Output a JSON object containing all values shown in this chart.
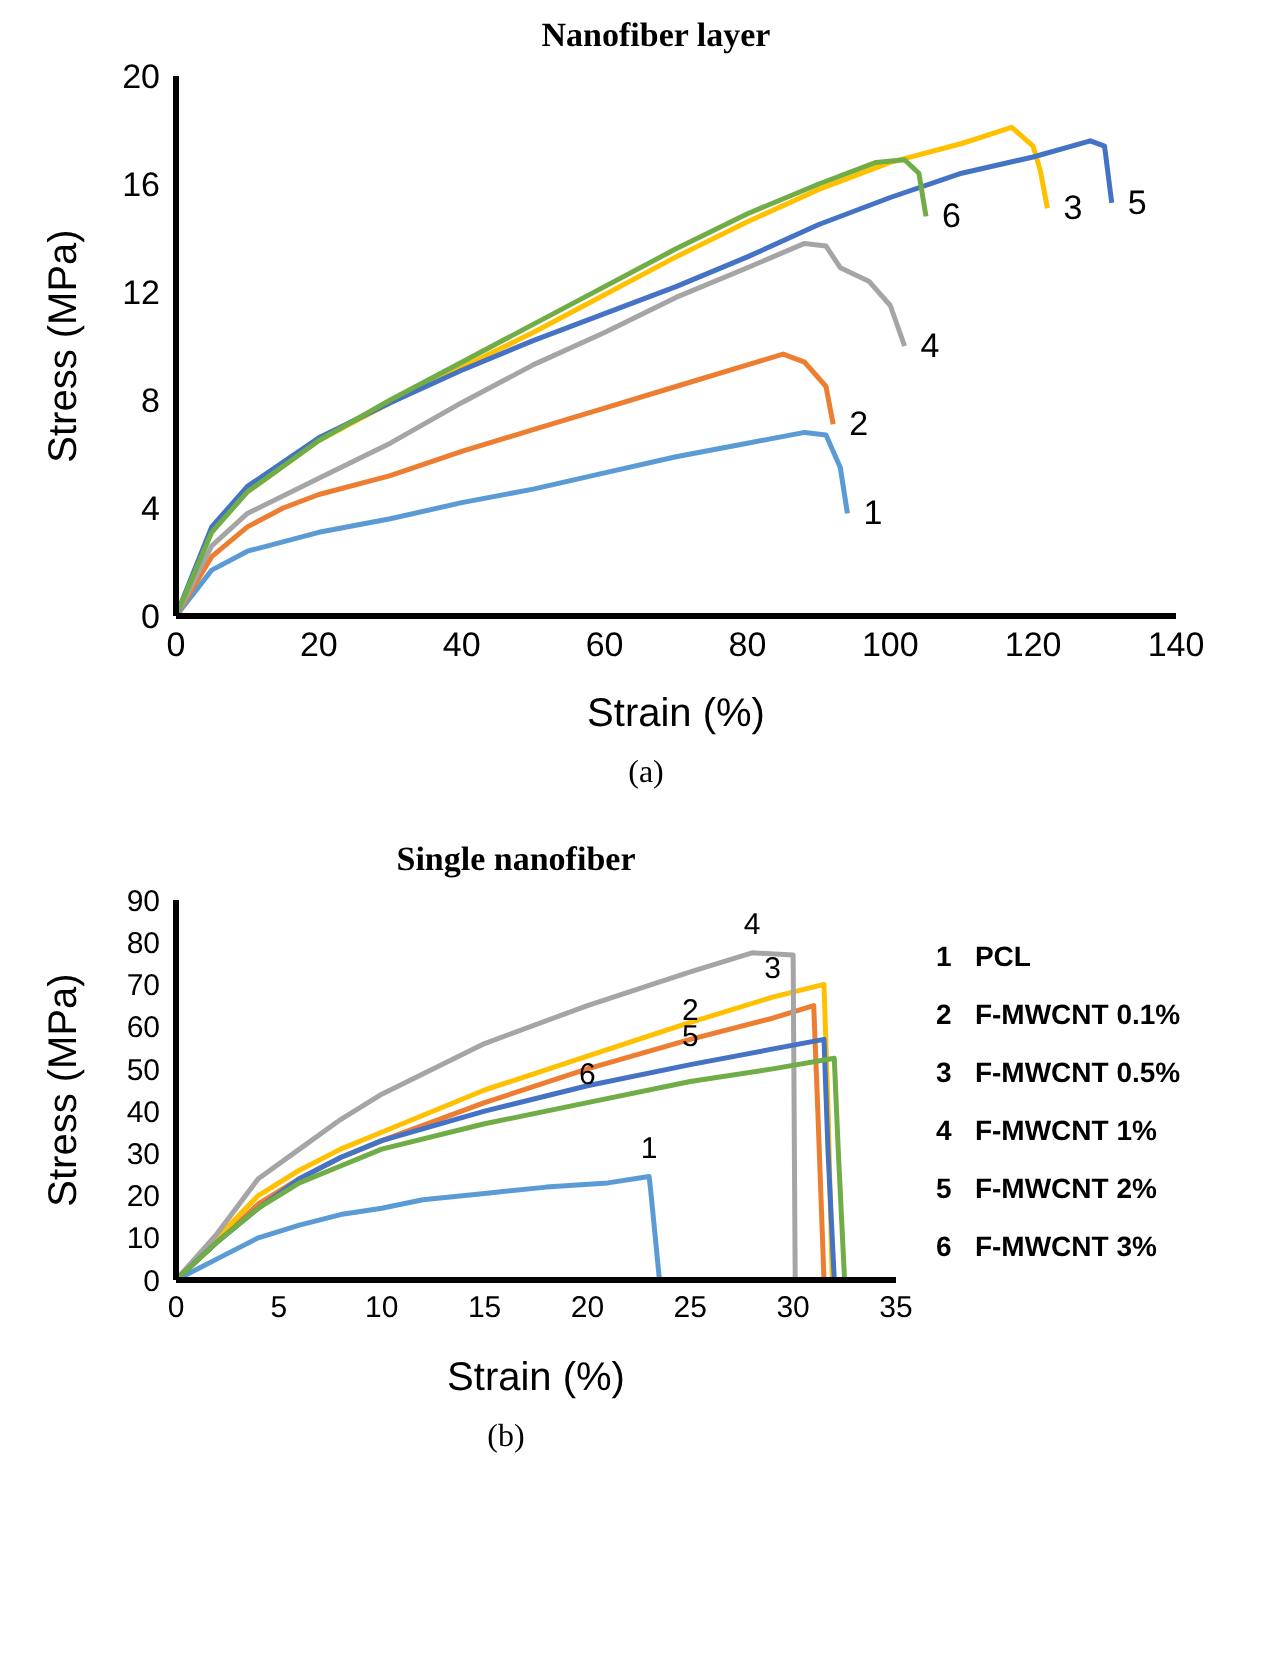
{
  "chart_data": [
    {
      "type": "line",
      "title": "Nanofiber layer",
      "xlabel": "Strain (%)",
      "ylabel": "Stress (MPa)",
      "xlim": [
        0,
        140
      ],
      "xticks": [
        0,
        20,
        40,
        60,
        80,
        100,
        120,
        140
      ],
      "ylim": [
        0,
        20
      ],
      "yticks": [
        0,
        4,
        8,
        12,
        16,
        20
      ],
      "grid": false,
      "legend": false,
      "marker": "none",
      "line_style": "solid",
      "series": [
        {
          "color": "#5b9bd5",
          "x": [
            0,
            5,
            10,
            20,
            30,
            40,
            50,
            60,
            70,
            80,
            88,
            91,
            93,
            94
          ],
          "values": [
            0,
            1.7,
            2.4,
            3.1,
            3.6,
            4.2,
            4.7,
            5.3,
            5.9,
            6.4,
            6.8,
            6.7,
            5.5,
            3.8
          ]
        },
        {
          "color": "#ed7d31",
          "x": [
            0,
            5,
            10,
            15,
            20,
            30,
            40,
            50,
            60,
            70,
            80,
            85,
            88,
            91,
            92
          ],
          "values": [
            0,
            2.2,
            3.3,
            4,
            4.5,
            5.2,
            6.1,
            6.9,
            7.7,
            8.5,
            9.3,
            9.7,
            9.4,
            8.5,
            7.1
          ]
        },
        {
          "color": "#ffc000",
          "x": [
            10,
            20,
            30,
            40,
            50,
            60,
            70,
            80,
            90,
            100,
            110,
            117,
            120,
            121,
            122
          ],
          "values": [
            4.6,
            6.5,
            7.9,
            9.2,
            10.5,
            11.9,
            13.3,
            14.6,
            15.8,
            16.8,
            17.5,
            18.1,
            17.4,
            16.5,
            15.1
          ]
        },
        {
          "color": "#a5a5a5",
          "x": [
            0,
            5,
            10,
            20,
            30,
            40,
            50,
            60,
            70,
            80,
            88,
            91,
            93,
            97,
            100,
            102
          ],
          "values": [
            0,
            2.6,
            3.8,
            5.1,
            6.4,
            7.9,
            9.3,
            10.5,
            11.8,
            12.9,
            13.8,
            13.7,
            12.9,
            12.4,
            11.5,
            10
          ]
        },
        {
          "color": "#4472c4",
          "x": [
            0,
            5,
            10,
            20,
            30,
            40,
            50,
            60,
            70,
            80,
            90,
            100,
            110,
            120,
            128,
            130,
            131
          ],
          "values": [
            0,
            3.3,
            4.8,
            6.6,
            7.9,
            9.1,
            10.2,
            11.2,
            12.2,
            13.3,
            14.5,
            15.5,
            16.4,
            17,
            17.6,
            17.4,
            15.3
          ]
        },
        {
          "color": "#70ad47",
          "x": [
            0,
            5,
            10,
            20,
            30,
            40,
            50,
            60,
            70,
            80,
            90,
            98,
            102,
            104,
            105
          ],
          "values": [
            0,
            3.1,
            4.6,
            6.5,
            8,
            9.4,
            10.8,
            12.2,
            13.6,
            14.9,
            16,
            16.8,
            16.9,
            16.4,
            14.8
          ]
        }
      ],
      "annotations": [
        {
          "text": "1",
          "x": 94,
          "y": 3.8
        },
        {
          "text": "2",
          "x": 92,
          "y": 7.1
        },
        {
          "text": "3",
          "x": 122,
          "y": 15.1
        },
        {
          "text": "4",
          "x": 102,
          "y": 10
        },
        {
          "text": "5",
          "x": 131,
          "y": 15.3
        },
        {
          "text": "6",
          "x": 105,
          "y": 14.8
        },
        "(a)"
      ]
    },
    {
      "type": "line",
      "title": "Single nanofiber",
      "xlabel": "Strain (%)",
      "ylabel": "Stress (MPa)",
      "xlim": [
        0,
        35
      ],
      "xticks": [
        0,
        5,
        10,
        15,
        20,
        25,
        30,
        35
      ],
      "ylim": [
        0,
        90
      ],
      "yticks": [
        0,
        10,
        20,
        30,
        40,
        50,
        60,
        70,
        80,
        90
      ],
      "grid": false,
      "legend": false,
      "marker": "none",
      "line_style": "solid",
      "series": [
        {
          "color": "#5b9bd5",
          "x": [
            0,
            2,
            4,
            6,
            8,
            10,
            12,
            15,
            18,
            21,
            23,
            23.1,
            23.5
          ],
          "values": [
            0,
            5,
            10,
            13,
            15.5,
            17,
            19,
            20.5,
            22,
            23,
            24.5,
            20,
            0
          ]
        },
        {
          "color": "#ed7d31",
          "x": [
            0,
            2,
            4,
            6,
            8,
            10,
            15,
            20,
            25,
            29,
            31,
            31.2,
            31.5
          ],
          "values": [
            0,
            9,
            18,
            24,
            29,
            33,
            42,
            50,
            57,
            62,
            65,
            40,
            0
          ]
        },
        {
          "color": "#ffc000",
          "x": [
            0,
            2,
            4,
            6,
            8,
            10,
            15,
            20,
            25,
            29,
            31.5,
            31.7,
            31.9
          ],
          "values": [
            0,
            10,
            20,
            26,
            31,
            35,
            45,
            53,
            61,
            67,
            70,
            40,
            0
          ]
        },
        {
          "color": "#a5a5a5",
          "x": [
            0,
            2,
            4,
            6,
            8,
            10,
            15,
            20,
            25,
            28,
            30,
            30.1
          ],
          "values": [
            0,
            11,
            24,
            31,
            38,
            44,
            56,
            65,
            73,
            77.5,
            77,
            0
          ]
        },
        {
          "color": "#4472c4",
          "x": [
            0,
            2,
            4,
            6,
            8,
            10,
            15,
            20,
            25,
            31.5,
            31.7,
            32
          ],
          "values": [
            0,
            9,
            17,
            24,
            29,
            33,
            40,
            46,
            51,
            57,
            30,
            0
          ]
        },
        {
          "color": "#70ad47",
          "x": [
            0,
            2,
            4,
            6,
            8,
            10,
            15,
            20,
            25,
            29,
            32,
            32.2,
            32.5
          ],
          "values": [
            0,
            9,
            17,
            23,
            27,
            31,
            37,
            42,
            47,
            50,
            52.5,
            30,
            0
          ]
        }
      ],
      "annotations": [
        {
          "text": "4",
          "x": 28,
          "y": 77.5
        },
        {
          "text": "3",
          "x": 29,
          "y": 67
        },
        {
          "text": "2",
          "x": 25,
          "y": 57
        },
        {
          "text": "5",
          "x": 25,
          "y": 51
        },
        {
          "text": "6",
          "x": 20,
          "y": 42
        },
        {
          "text": "1",
          "x": 23,
          "y": 24.5
        },
        "1   PCL",
        "2   F-MWCNT 0.1%",
        "3   F-MWCNT 0.5%",
        "4   F-MWCNT 1%",
        "5   F-MWCNT 2%",
        "6   F-MWCNT 3%",
        "(b)"
      ]
    }
  ]
}
